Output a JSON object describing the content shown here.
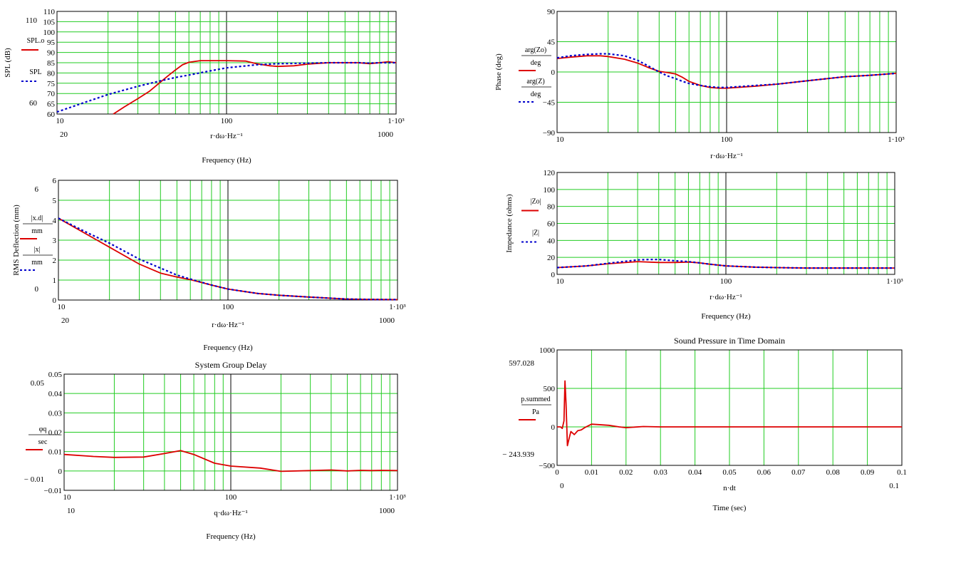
{
  "colors": {
    "grid": "#22cc22",
    "major_line": "#000000",
    "red": "#dd0000",
    "blue": "#0000cc"
  },
  "chart_data": [
    {
      "id": "spl",
      "type": "line",
      "title": "",
      "ylabel": "SPL (dB)",
      "xlabel_expr": "r·dω·Hz⁻¹",
      "xlabel": "Frequency (Hz)",
      "xscale": "log",
      "xlim": [
        10,
        1000
      ],
      "ylim": [
        60,
        110
      ],
      "xlim_labels": [
        "10",
        "100",
        "1·10³"
      ],
      "ylim_labels": [
        "110",
        "60"
      ],
      "axis_extra": {
        "y_cursor": [
          "110",
          "60"
        ],
        "x_cursor": [
          "20",
          "1000"
        ]
      },
      "yticks": [
        60,
        65,
        70,
        75,
        80,
        85,
        90,
        95,
        100,
        105,
        110
      ],
      "ytick_labels": [
        "60",
        "65",
        "70",
        "75",
        "80",
        "85",
        "90",
        "95",
        "100",
        "105",
        "110"
      ],
      "legend": [
        "SPL.o",
        "SPL"
      ],
      "legend_sub": [
        "r",
        "r"
      ],
      "series": [
        {
          "name": "SPL.o",
          "style": "solid",
          "color": "red",
          "x": [
            21.5,
            25,
            30,
            35,
            40,
            45,
            50,
            55,
            60,
            70,
            80,
            100,
            130,
            150,
            180,
            200,
            250,
            300,
            400,
            500,
            600,
            700,
            800,
            900,
            1000
          ],
          "y": [
            60,
            63.5,
            67.5,
            71,
            75,
            78.5,
            81.5,
            84,
            85.2,
            86,
            86,
            86,
            85.8,
            84.5,
            83.5,
            83.2,
            83.5,
            84.3,
            85,
            85,
            85,
            84.5,
            85,
            85.5,
            85
          ]
        },
        {
          "name": "SPL",
          "style": "dotted",
          "color": "blue",
          "x": [
            10,
            15,
            20,
            30,
            40,
            50,
            60,
            80,
            100,
            150,
            200,
            300,
            400,
            500,
            600,
            700,
            800,
            1000
          ],
          "y": [
            61,
            66,
            69.5,
            73.5,
            76,
            77.8,
            79,
            81,
            82.5,
            84,
            84.5,
            84.8,
            85,
            85,
            85,
            84.8,
            85,
            85
          ]
        }
      ]
    },
    {
      "id": "deflection",
      "type": "line",
      "title": "",
      "ylabel": "RMS Deflection (mm)",
      "xlabel_expr": "r·dω·Hz⁻¹",
      "xlabel": "Frequency (Hz)",
      "xscale": "log",
      "xlim": [
        10,
        1000
      ],
      "ylim": [
        0,
        6
      ],
      "xlim_labels": [
        "10",
        "100",
        "1·10³"
      ],
      "axis_extra": {
        "y_cursor": [
          "6",
          "0"
        ],
        "x_cursor": [
          "20",
          "1000"
        ]
      },
      "yticks": [
        0,
        1,
        2,
        3,
        4,
        5,
        6
      ],
      "ytick_labels": [
        "0",
        "1",
        "2",
        "3",
        "4",
        "5",
        "6"
      ],
      "legend": [
        "|x.d|/mm",
        "|x|/mm"
      ],
      "series": [
        {
          "name": "x.d",
          "style": "solid",
          "color": "red",
          "x": [
            10,
            15,
            20,
            30,
            40,
            50,
            60,
            80,
            100,
            150,
            200,
            300,
            500,
            700,
            1000
          ],
          "y": [
            4.1,
            3.25,
            2.65,
            1.8,
            1.35,
            1.15,
            1.02,
            0.75,
            0.55,
            0.33,
            0.24,
            0.15,
            0.05,
            0.03,
            0.02
          ]
        },
        {
          "name": "x",
          "style": "dotted",
          "color": "blue",
          "x": [
            10,
            15,
            20,
            30,
            40,
            50,
            60,
            80,
            100,
            150,
            200,
            300,
            500,
            700,
            1000
          ],
          "y": [
            4.1,
            3.35,
            2.85,
            2.05,
            1.6,
            1.25,
            1.05,
            0.75,
            0.55,
            0.33,
            0.24,
            0.15,
            0.05,
            0.03,
            0.02
          ]
        }
      ]
    },
    {
      "id": "group-delay",
      "type": "line",
      "title": "System Group Delay",
      "ylabel": "",
      "xlabel_expr": "q·dω·Hz⁻¹",
      "xlabel": "Frequency (Hz)",
      "xscale": "log",
      "xlim": [
        10,
        1000
      ],
      "ylim": [
        -0.01,
        0.05
      ],
      "xlim_labels": [
        "10",
        "100",
        "1·10³"
      ],
      "axis_extra": {
        "y_cursor": [
          "0.05",
          "− 0.01"
        ],
        "x_cursor": [
          "10",
          "1000"
        ]
      },
      "yticks": [
        -0.01,
        0,
        0.01,
        0.02,
        0.03,
        0.04,
        0.05
      ],
      "ytick_labels": [
        "−0.01",
        "0",
        "0.01",
        "0.02",
        "0.03",
        "0.04",
        "0.05"
      ],
      "legend": [
        "φq/sec"
      ],
      "series": [
        {
          "name": "φq",
          "style": "solid",
          "color": "red",
          "x": [
            10,
            15,
            20,
            30,
            40,
            50,
            60,
            80,
            100,
            150,
            200,
            300,
            400,
            500,
            600,
            700,
            800,
            1000
          ],
          "y": [
            0.0085,
            0.0075,
            0.007,
            0.0072,
            0.009,
            0.0105,
            0.0085,
            0.004,
            0.0025,
            0.0015,
            -0.0002,
            0.0002,
            0.0005,
            0.0,
            0.0003,
            0.0002,
            0.0003,
            0.0002
          ]
        }
      ]
    },
    {
      "id": "phase",
      "type": "line",
      "title": "",
      "ylabel": "Phase (deg)",
      "xlabel_expr": "r·dω·Hz⁻¹",
      "xlabel": "",
      "xscale": "log",
      "xlim": [
        10,
        1000
      ],
      "ylim": [
        -90,
        90
      ],
      "xlim_labels": [
        "10",
        "100",
        "1·10³"
      ],
      "yticks": [
        -90,
        -45,
        0,
        45,
        90
      ],
      "ytick_labels": [
        "−90",
        "−45",
        "0",
        "45",
        "90"
      ],
      "legend": [
        "arg(Zo)/deg",
        "arg(Z)/deg"
      ],
      "series": [
        {
          "name": "arg(Zo)",
          "style": "solid",
          "color": "red",
          "x": [
            10,
            12,
            15,
            18,
            20,
            25,
            30,
            35,
            40,
            45,
            50,
            55,
            60,
            70,
            80,
            90,
            100,
            150,
            200,
            300,
            500,
            700,
            1000
          ],
          "y": [
            20,
            22,
            24,
            24,
            23,
            19,
            13,
            6,
            1,
            -1,
            -3,
            -8,
            -14,
            -20,
            -23,
            -24,
            -24,
            -21,
            -18,
            -13,
            -7,
            -5,
            -2
          ]
        },
        {
          "name": "arg(Z)",
          "style": "dotted",
          "color": "blue",
          "x": [
            10,
            12,
            15,
            18,
            20,
            25,
            30,
            35,
            40,
            45,
            50,
            55,
            60,
            70,
            80,
            90,
            100,
            150,
            200,
            300,
            500,
            700,
            1000
          ],
          "y": [
            21,
            24,
            26,
            27,
            27,
            24,
            17,
            8,
            0,
            -6,
            -10,
            -14,
            -17,
            -20,
            -22,
            -23,
            -23,
            -20,
            -18,
            -13,
            -7,
            -5,
            -2
          ]
        }
      ]
    },
    {
      "id": "impedance",
      "type": "line",
      "title": "",
      "ylabel": "Impedance (ohms)",
      "xlabel_expr": "r·dω·Hz⁻¹",
      "xlabel": "Frequency (Hz)",
      "xscale": "log",
      "xlim": [
        10,
        1000
      ],
      "ylim": [
        0,
        120
      ],
      "xlim_labels": [
        "10",
        "100",
        "1·10³"
      ],
      "yticks": [
        0,
        20,
        40,
        60,
        80,
        100,
        120
      ],
      "ytick_labels": [
        "0",
        "20",
        "40",
        "60",
        "80",
        "100",
        "120"
      ],
      "legend": [
        "|Zo|",
        "|Z|"
      ],
      "series": [
        {
          "name": "|Zo|",
          "style": "solid",
          "color": "red",
          "x": [
            10,
            15,
            20,
            30,
            40,
            50,
            60,
            70,
            80,
            100,
            150,
            200,
            300,
            500,
            700,
            1000
          ],
          "y": [
            8,
            10,
            12.5,
            15,
            14,
            14,
            14.5,
            13.5,
            12,
            10,
            8.5,
            8,
            7.5,
            7.5,
            7.5,
            7.5
          ]
        },
        {
          "name": "|Z|",
          "style": "dotted",
          "color": "blue",
          "x": [
            10,
            15,
            20,
            30,
            35,
            40,
            50,
            60,
            70,
            80,
            100,
            150,
            200,
            300,
            500,
            700,
            1000
          ],
          "y": [
            8,
            10,
            13,
            17,
            17.5,
            17.5,
            16,
            15,
            13.5,
            12,
            10,
            8.5,
            8,
            7.5,
            7.5,
            7.5,
            7.5
          ]
        }
      ]
    },
    {
      "id": "time-domain",
      "type": "line",
      "title": "Sound Pressure in Time Domain",
      "ylabel": "",
      "xlabel_expr": "n·dt",
      "xlabel": "Time (sec)",
      "xscale": "linear",
      "xlim": [
        0,
        0.1
      ],
      "ylim": [
        -500,
        1000
      ],
      "xticks": [
        0,
        0.01,
        0.02,
        0.03,
        0.04,
        0.05,
        0.06,
        0.07,
        0.08,
        0.09,
        0.1
      ],
      "xtick_labels": [
        "0",
        "0.01",
        "0.02",
        "0.03",
        "0.04",
        "0.05",
        "0.06",
        "0.07",
        "0.08",
        "0.09",
        "0.1"
      ],
      "yticks": [
        -500,
        0,
        500,
        1000
      ],
      "ytick_labels": [
        "−500",
        "0",
        "500",
        "1000"
      ],
      "axis_extra": {
        "y_cursor": [
          "597.028",
          "− 243.939"
        ],
        "x_cursor": [
          "0",
          "0.1"
        ]
      },
      "legend": [
        "p.summed/Pa"
      ],
      "series": [
        {
          "name": "p.summed",
          "style": "solid",
          "color": "red",
          "x": [
            0,
            0.001,
            0.0015,
            0.002,
            0.0023,
            0.0026,
            0.003,
            0.0035,
            0.004,
            0.005,
            0.006,
            0.007,
            0.008,
            0.01,
            0.012,
            0.015,
            0.018,
            0.02,
            0.025,
            0.03,
            0.04,
            0.05,
            0.06,
            0.07,
            0.08,
            0.09,
            0.1
          ],
          "y": [
            0,
            0,
            -20,
            80,
            597,
            300,
            -244,
            -150,
            -60,
            -100,
            -50,
            -40,
            -10,
            35,
            30,
            20,
            0,
            -10,
            5,
            0,
            0,
            0,
            0,
            0,
            0,
            0,
            0
          ]
        }
      ]
    }
  ]
}
